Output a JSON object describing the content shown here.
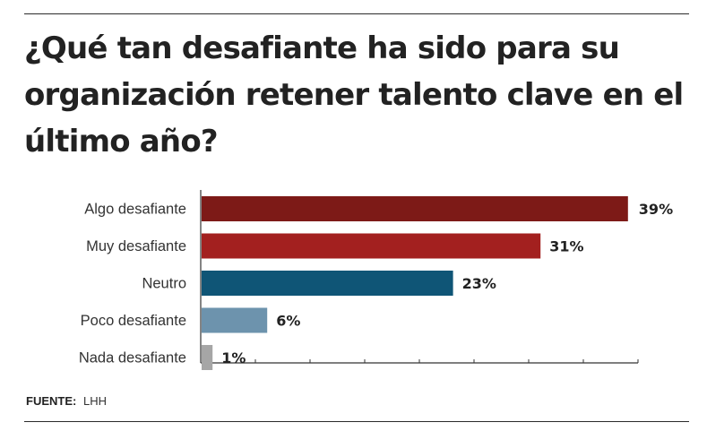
{
  "title": "¿Qué tan desafiante ha sido para su organización retener talento clave en el último año?",
  "source": {
    "label": "FUENTE:",
    "value": "LHH"
  },
  "chart_data": {
    "type": "bar",
    "orientation": "horizontal",
    "title": "¿Qué tan desafiante ha sido para su organización retener talento clave en el último año?",
    "categories": [
      "Algo desafiante",
      "Muy desafiante",
      "Neutro",
      "Poco desafiante",
      "Nada desafiante"
    ],
    "values": [
      39,
      31,
      23,
      6,
      1
    ],
    "value_labels": [
      "39%",
      "31%",
      "23%",
      "6%",
      "1%"
    ],
    "colors": [
      "#7d1a17",
      "#a3201f",
      "#0f5576",
      "#6d93ad",
      "#a6a6a6"
    ],
    "xlim": [
      0,
      40
    ],
    "xlabel": "",
    "ylabel": "",
    "grid": false,
    "legend": "none"
  }
}
